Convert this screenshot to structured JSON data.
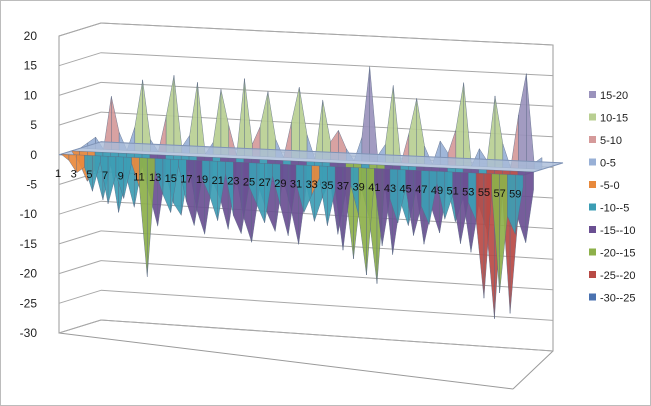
{
  "chart_data": {
    "type": "surface-3d",
    "title": "",
    "xlabel": "",
    "ylabel": "",
    "zlim": [
      -30,
      20
    ],
    "z_ticks": [
      "20",
      "15",
      "10",
      "5",
      "0",
      "-5",
      "-10",
      "-15",
      "-20",
      "-25",
      "-30"
    ],
    "x_ticks": [
      "1",
      "3",
      "5",
      "7",
      "9",
      "11",
      "13",
      "15",
      "17",
      "19",
      "21",
      "23",
      "25",
      "27",
      "29",
      "31",
      "33",
      "35",
      "37",
      "39",
      "41",
      "43",
      "45",
      "47",
      "49",
      "51",
      "53",
      "55",
      "57",
      "59"
    ],
    "grid": true,
    "legend_position": "right",
    "legend": [
      {
        "label": "15-20",
        "color": "#9a92bc"
      },
      {
        "label": "10-15",
        "color": "#b9cf92"
      },
      {
        "label": "5-10",
        "color": "#d59a9a"
      },
      {
        "label": "0-5",
        "color": "#98b0d6"
      },
      {
        "label": "-5-0",
        "color": "#e8893c"
      },
      {
        "label": "-10--5",
        "color": "#3c9db4"
      },
      {
        "label": "-15--10",
        "color": "#6a4f92"
      },
      {
        "label": "-20--15",
        "color": "#8db04a"
      },
      {
        "label": "-25--20",
        "color": "#b84a45"
      },
      {
        "label": "-30--25",
        "color": "#4a72b0"
      }
    ],
    "series": [
      {
        "values": [
          0,
          1,
          2,
          0,
          9,
          3,
          0,
          4,
          12,
          2,
          0,
          6,
          13,
          1,
          3,
          12,
          0,
          2,
          11,
          5,
          0,
          13,
          2,
          5,
          11,
          3,
          0,
          6,
          12,
          4,
          0,
          10,
          3,
          5,
          2,
          0,
          4,
          16,
          1,
          3,
          13,
          0,
          5,
          11,
          3,
          0,
          4,
          2,
          6,
          14,
          0,
          3,
          1,
          12,
          4,
          0,
          9,
          16,
          1,
          2
        ]
      },
      {
        "values": [
          0,
          -2,
          -5,
          -3,
          -8,
          -2,
          -10,
          -4,
          -9,
          -2,
          -7,
          -12,
          -3,
          -8,
          -10,
          -2,
          -9,
          -13,
          -4,
          -7,
          -12,
          -3,
          -10,
          -14,
          -5,
          -9,
          -12,
          -3,
          -8,
          -14,
          -4,
          -10,
          -6,
          -3,
          -12,
          -5,
          -16,
          -4,
          -9,
          -20,
          -3,
          -15,
          -6,
          -10,
          -4,
          -13,
          -7,
          -11,
          -3,
          -9,
          -5,
          -14,
          -6,
          -10,
          -25,
          -4,
          -24,
          -8,
          -12,
          -3
        ]
      },
      {
        "values": [
          0,
          -1,
          -3,
          -2,
          -6,
          -1,
          -8,
          -3,
          -7,
          -1,
          -5,
          -20,
          -2,
          -6,
          -9,
          -1,
          -7,
          -11,
          -3,
          -6,
          -10,
          -2,
          -9,
          -12,
          -4,
          -7,
          -10,
          -2,
          -7,
          -12,
          -3,
          -8,
          -5,
          -2,
          -10,
          -4,
          -14,
          -3,
          -8,
          -18,
          -2,
          -13,
          -5,
          -9,
          -3,
          -11,
          -6,
          -9,
          -2,
          -8,
          -4,
          -12,
          -5,
          -8,
          -21,
          -3,
          -20,
          -7,
          -10,
          -2
        ]
      }
    ]
  }
}
